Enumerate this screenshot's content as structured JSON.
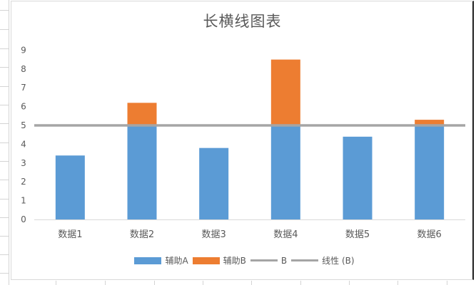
{
  "chart_data": {
    "type": "bar",
    "stacked": true,
    "title": "长横线图表",
    "categories": [
      "数据1",
      "数据2",
      "数据3",
      "数据4",
      "数据5",
      "数据6"
    ],
    "series": [
      {
        "name": "辅助A",
        "kind": "bar",
        "color": "#5b9bd5",
        "values": [
          3.4,
          5,
          3.8,
          5,
          4.4,
          5
        ]
      },
      {
        "name": "辅助B",
        "kind": "bar",
        "color": "#ed7d31",
        "values": [
          0,
          1.2,
          0,
          3.5,
          0,
          0.3
        ]
      },
      {
        "name": "B",
        "kind": "line",
        "color": "#a5a5a5",
        "values": [
          5,
          5,
          5,
          5,
          5,
          5
        ]
      },
      {
        "name": "线性 (B)",
        "kind": "trendline",
        "color": "#a5a5a5",
        "values": [
          5,
          5,
          5,
          5,
          5,
          5
        ]
      }
    ],
    "xlabel": "",
    "ylabel": "",
    "ylim": [
      0,
      9
    ],
    "yticks": [
      0,
      1,
      2,
      3,
      4,
      5,
      6,
      7,
      8,
      9
    ],
    "grid": false,
    "legend_position": "bottom"
  },
  "legend": [
    {
      "label": "辅助A",
      "type": "box",
      "color": "#5b9bd5"
    },
    {
      "label": "辅助B",
      "type": "box",
      "color": "#ed7d31"
    },
    {
      "label": "B",
      "type": "line",
      "color": "#a5a5a5"
    },
    {
      "label": "线性 (B)",
      "type": "line",
      "color": "#a5a5a5"
    }
  ]
}
